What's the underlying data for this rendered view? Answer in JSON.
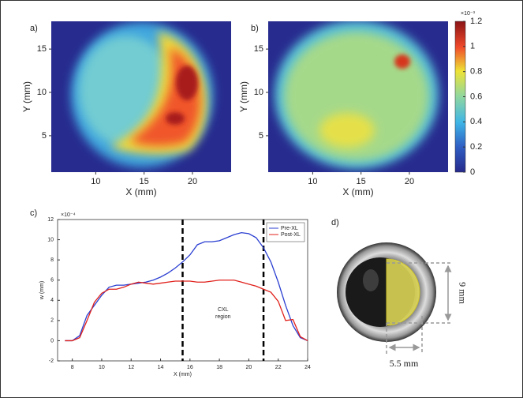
{
  "chart_data": [
    {
      "type": "heatmap",
      "panel": "a)",
      "xlabel": "X (mm)",
      "ylabel": "Y (mm)",
      "xlim": [
        5.4,
        24
      ],
      "ylim": [
        0.8,
        18.2
      ],
      "xticks": [
        10,
        15,
        20
      ],
      "yticks": [
        5,
        10,
        15
      ]
    },
    {
      "type": "heatmap",
      "panel": "b)",
      "xlabel": "X (mm)",
      "ylabel": "Y (mm)",
      "xlim": [
        5.4,
        24
      ],
      "ylim": [
        0.8,
        18.2
      ],
      "xticks": [
        10,
        15,
        20
      ],
      "yticks": [
        5,
        10,
        15
      ]
    },
    {
      "type": "colorbar",
      "scale_label": "×10⁻³",
      "ylim": [
        0,
        1.2
      ],
      "yticks": [
        0,
        0.2,
        0.4,
        0.6,
        0.8,
        1,
        1.2
      ]
    },
    {
      "type": "line",
      "panel": "c)",
      "xlabel": "X (mm)",
      "ylabel": "w (mm)",
      "scale_label": "×10⁻⁴",
      "annotation": "CXL region",
      "xlim": [
        7,
        24
      ],
      "ylim": [
        -2,
        12
      ],
      "xticks": [
        8,
        10,
        12,
        14,
        16,
        18,
        20,
        22,
        24
      ],
      "yticks": [
        -2,
        0,
        2,
        4,
        6,
        8,
        10,
        12
      ],
      "reference_lines": [
        15.5,
        21
      ],
      "legend": "top-right",
      "x": [
        7.5,
        8,
        8.5,
        9,
        9.5,
        10,
        10.5,
        11,
        11.5,
        12,
        12.5,
        13,
        13.5,
        14,
        14.5,
        15,
        15.5,
        16,
        16.5,
        17,
        17.5,
        18,
        18.5,
        19,
        19.5,
        20,
        20.5,
        21,
        21.5,
        22,
        22.5,
        23,
        23.5,
        24
      ],
      "series": [
        {
          "name": "Pre-XL",
          "color": "#2b3fd1",
          "values": [
            0,
            0,
            0.5,
            2.5,
            3.5,
            4.5,
            5.3,
            5.5,
            5.5,
            5.6,
            5.7,
            5.8,
            6,
            6.3,
            6.7,
            7.2,
            7.8,
            8.5,
            9.5,
            9.8,
            9.8,
            9.9,
            10.2,
            10.5,
            10.7,
            10.6,
            10.2,
            9.2,
            7.8,
            5.8,
            3.5,
            1.5,
            0.3,
            0
          ]
        },
        {
          "name": "Post-XL",
          "color": "#e0201b",
          "values": [
            0,
            0,
            0.3,
            2,
            3.8,
            4.7,
            5.1,
            5.1,
            5.3,
            5.6,
            5.8,
            5.7,
            5.6,
            5.7,
            5.8,
            5.9,
            5.9,
            5.9,
            5.8,
            5.8,
            5.9,
            6,
            6,
            6,
            5.8,
            5.6,
            5.4,
            5.1,
            4.8,
            3.9,
            2,
            2.1,
            0.4,
            0
          ]
        }
      ]
    }
  ],
  "image_panel": {
    "label": "d)",
    "height_label": "9 mm",
    "width_label": "5.5 mm"
  }
}
